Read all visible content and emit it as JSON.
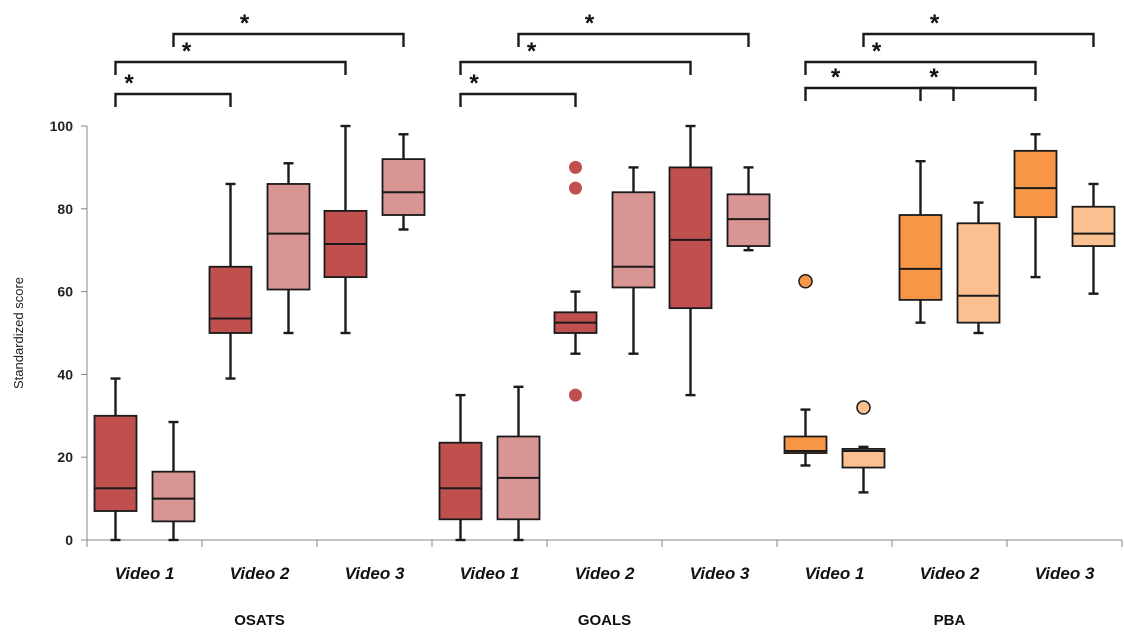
{
  "chart_data": {
    "type": "boxplot",
    "ylabel": "Standardized score",
    "ylim": [
      0,
      100
    ],
    "yticks": [
      0,
      20,
      40,
      60,
      80,
      100
    ],
    "categories": [
      "Video 1",
      "Video 2",
      "Video 3",
      "Video 1",
      "Video 2",
      "Video 3",
      "Video 1",
      "Video 2",
      "Video 3"
    ],
    "groups": [
      "OSATS",
      "GOALS",
      "PBA"
    ],
    "significance_marker": "*",
    "colors": {
      "osats_dark": "#c0504d",
      "osats_light": "#d99594",
      "goals_dark": "#c0504d",
      "goals_light": "#d99594",
      "pba_dark": "#f79646",
      "pba_light": "#fac090",
      "stroke": "#1a1a1a"
    },
    "boxes": [
      {
        "group": "OSATS",
        "video": "Video 1",
        "shade": "dark",
        "min": 0,
        "q1": 7,
        "median": 12.5,
        "q3": 30,
        "max": 39,
        "outliers": []
      },
      {
        "group": "OSATS",
        "video": "Video 1",
        "shade": "light",
        "min": 0,
        "q1": 4.5,
        "median": 10,
        "q3": 16.5,
        "max": 28.5,
        "outliers": []
      },
      {
        "group": "OSATS",
        "video": "Video 2",
        "shade": "dark",
        "min": 39,
        "q1": 50,
        "median": 53.5,
        "q3": 66,
        "max": 86,
        "outliers": []
      },
      {
        "group": "OSATS",
        "video": "Video 2",
        "shade": "light",
        "min": 50,
        "q1": 60.5,
        "median": 74,
        "q3": 86,
        "max": 91,
        "outliers": []
      },
      {
        "group": "OSATS",
        "video": "Video 3",
        "shade": "dark",
        "min": 50,
        "q1": 63.5,
        "median": 71.5,
        "q3": 79.5,
        "max": 100,
        "outliers": []
      },
      {
        "group": "OSATS",
        "video": "Video 3",
        "shade": "light",
        "min": 75,
        "q1": 78.5,
        "median": 84,
        "q3": 92,
        "max": 98,
        "outliers": []
      },
      {
        "group": "GOALS",
        "video": "Video 1",
        "shade": "dark",
        "min": 0,
        "q1": 5,
        "median": 12.5,
        "q3": 23.5,
        "max": 35,
        "outliers": []
      },
      {
        "group": "GOALS",
        "video": "Video 1",
        "shade": "light",
        "min": 0,
        "q1": 5,
        "median": 15,
        "q3": 25,
        "max": 37,
        "outliers": []
      },
      {
        "group": "GOALS",
        "video": "Video 2",
        "shade": "dark",
        "min": 45,
        "q1": 50,
        "median": 52.5,
        "q3": 55,
        "max": 60,
        "outliers": [
          90,
          85,
          35
        ]
      },
      {
        "group": "GOALS",
        "video": "Video 2",
        "shade": "light",
        "min": 45,
        "q1": 61,
        "median": 66,
        "q3": 84,
        "max": 90,
        "outliers": []
      },
      {
        "group": "GOALS",
        "video": "Video 3",
        "shade": "dark",
        "min": 35,
        "q1": 56,
        "median": 72.5,
        "q3": 90,
        "max": 100,
        "outliers": []
      },
      {
        "group": "GOALS",
        "video": "Video 3",
        "shade": "light",
        "min": 70,
        "q1": 71,
        "median": 77.5,
        "q3": 83.5,
        "max": 90,
        "outliers": []
      },
      {
        "group": "PBA",
        "video": "Video 1",
        "shade": "dark",
        "min": 18,
        "q1": 21,
        "median": 21.5,
        "q3": 25,
        "max": 31.5,
        "outliers": [
          62.5
        ]
      },
      {
        "group": "PBA",
        "video": "Video 1",
        "shade": "light",
        "min": 11.5,
        "q1": 17.5,
        "median": 21.5,
        "q3": 22,
        "max": 22.5,
        "outliers": [
          32
        ]
      },
      {
        "group": "PBA",
        "video": "Video 2",
        "shade": "dark",
        "min": 52.5,
        "q1": 58,
        "median": 65.5,
        "q3": 78.5,
        "max": 91.5,
        "outliers": []
      },
      {
        "group": "PBA",
        "video": "Video 2",
        "shade": "light",
        "min": 50,
        "q1": 52.5,
        "median": 59,
        "q3": 76.5,
        "max": 81.5,
        "outliers": []
      },
      {
        "group": "PBA",
        "video": "Video 3",
        "shade": "dark",
        "min": 63.5,
        "q1": 78,
        "median": 85,
        "q3": 94,
        "max": 98,
        "outliers": []
      },
      {
        "group": "PBA",
        "video": "Video 3",
        "shade": "light",
        "min": 59.5,
        "q1": 71,
        "median": 74,
        "q3": 80.5,
        "max": 86,
        "outliers": []
      }
    ],
    "significance": [
      {
        "group": "OSATS",
        "from": "Video 1",
        "to": "Video 2"
      },
      {
        "group": "OSATS",
        "from": "Video 1",
        "to": "Video 3"
      },
      {
        "group": "OSATS",
        "from": "Video 1",
        "to": "Video 3"
      },
      {
        "group": "GOALS",
        "from": "Video 1",
        "to": "Video 2"
      },
      {
        "group": "GOALS",
        "from": "Video 1",
        "to": "Video 3"
      },
      {
        "group": "GOALS",
        "from": "Video 1",
        "to": "Video 3"
      },
      {
        "group": "PBA",
        "from": "Video 1",
        "to": "Video 2"
      },
      {
        "group": "PBA",
        "from": "Video 2",
        "to": "Video 3"
      },
      {
        "group": "PBA",
        "from": "Video 1",
        "to": "Video 3"
      },
      {
        "group": "PBA",
        "from": "Video 1",
        "to": "Video 3"
      }
    ]
  }
}
